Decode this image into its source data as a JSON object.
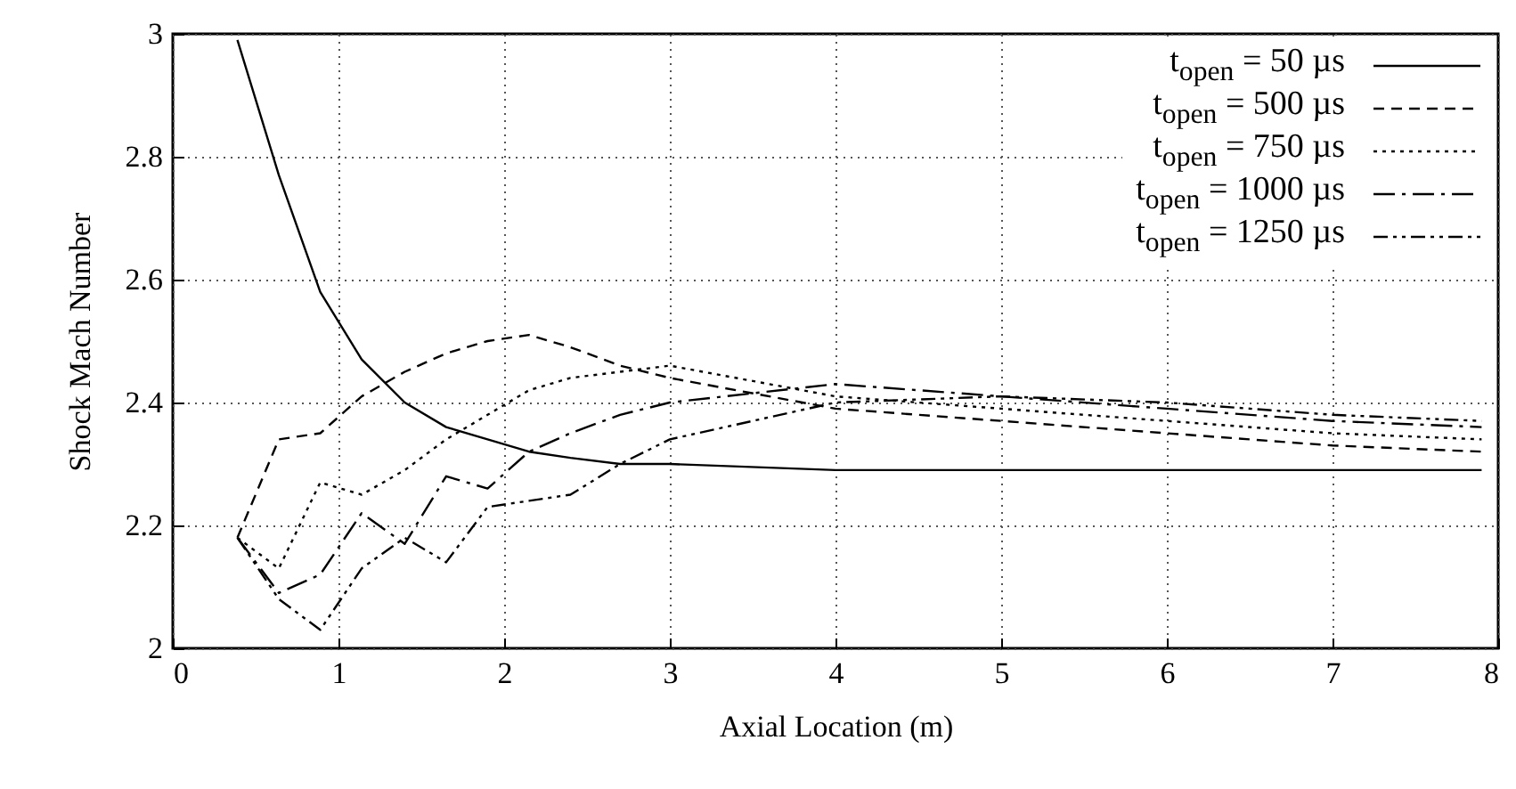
{
  "chart_data": {
    "type": "line",
    "xlabel": "Axial Location (m)",
    "ylabel": "Shock Mach Number",
    "x": [
      0.39,
      0.64,
      0.89,
      1.14,
      1.4,
      1.65,
      1.9,
      2.15,
      2.4,
      2.7,
      3,
      4,
      5,
      6,
      7,
      7.9
    ],
    "series": [
      {
        "name": "t$_{open}$ = 50 µs",
        "color": "#000000",
        "line_style": "solid",
        "values": [
          2.99,
          2.77,
          2.58,
          2.47,
          2.4,
          2.36,
          2.34,
          2.32,
          2.31,
          2.3,
          2.3,
          2.29,
          2.29,
          2.29,
          2.29,
          2.29
        ]
      },
      {
        "name": "t$_{open}$ = 500 µs",
        "color": "#000000",
        "line_style": "dashed",
        "values": [
          2.18,
          2.34,
          2.35,
          2.41,
          2.45,
          2.48,
          2.5,
          2.51,
          2.49,
          2.46,
          2.44,
          2.39,
          2.37,
          2.35,
          2.33,
          2.32
        ]
      },
      {
        "name": "t$_{open}$ = 750 µs",
        "color": "#000000",
        "line_style": "dotted",
        "values": [
          2.18,
          2.13,
          2.27,
          2.25,
          2.29,
          2.34,
          2.38,
          2.42,
          2.44,
          2.45,
          2.46,
          2.41,
          2.39,
          2.37,
          2.35,
          2.34
        ]
      },
      {
        "name": "t$_{open}$ = 1000 µs",
        "color": "#000000",
        "line_style": "dashdot",
        "values": [
          2.18,
          2.09,
          2.12,
          2.22,
          2.17,
          2.28,
          2.26,
          2.32,
          2.35,
          2.38,
          2.4,
          2.43,
          2.41,
          2.39,
          2.37,
          2.36
        ]
      },
      {
        "name": "t$_{open}$ = 1250 µs",
        "color": "#000000",
        "line_style": "dashdotdot",
        "values": [
          2.18,
          2.08,
          2.03,
          2.13,
          2.18,
          2.14,
          2.23,
          2.24,
          2.25,
          2.3,
          2.34,
          2.4,
          2.41,
          2.4,
          2.38,
          2.37
        ]
      }
    ],
    "xlim": [
      0,
      8
    ],
    "xticks": [
      0,
      1,
      2,
      3,
      4,
      5,
      6,
      7,
      8
    ],
    "ylim": [
      2,
      3
    ],
    "yticks": [
      2,
      2.2,
      2.4,
      2.6,
      2.8,
      3
    ],
    "grid": true,
    "legend": "top right"
  }
}
